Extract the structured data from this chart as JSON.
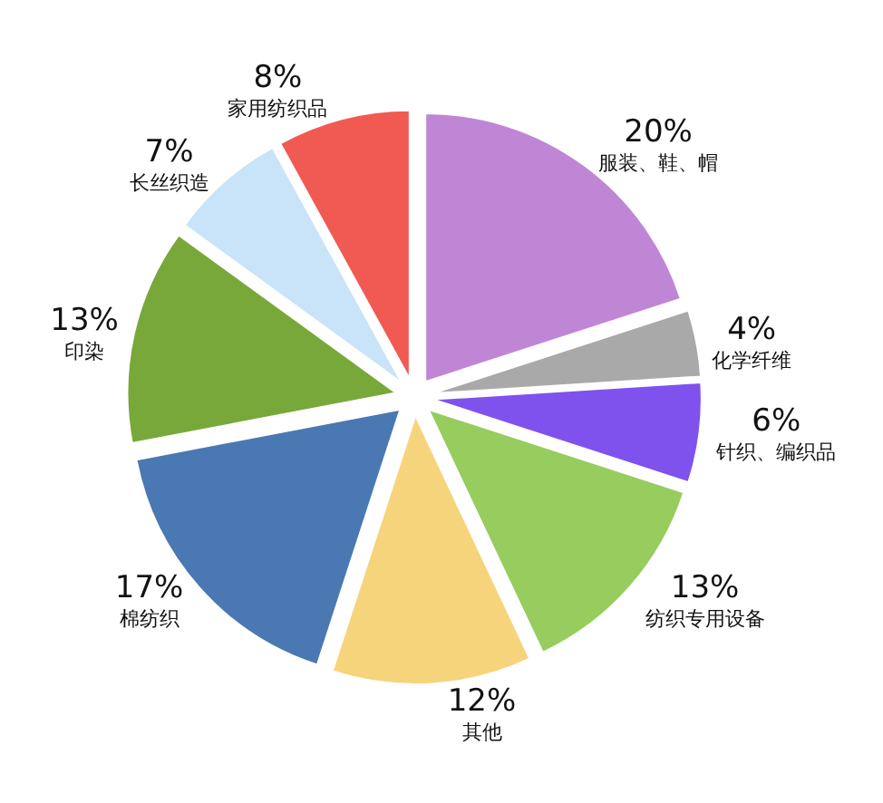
{
  "chart_data": {
    "type": "pie",
    "categories": [
      "服装、鞋、帽",
      "化学纤维",
      "针织、编织品",
      "纺织专用设备",
      "其他",
      "棉纺织",
      "印染",
      "长丝织造",
      "家用纺织品"
    ],
    "values": [
      20,
      4,
      6,
      13,
      12,
      17,
      13,
      7,
      8
    ],
    "value_labels": [
      "20%",
      "4%",
      "6%",
      "13%",
      "12%",
      "17%",
      "13%",
      "7%",
      "8%"
    ],
    "colors": [
      "#bf86d6",
      "#a9a9a9",
      "#7f52ee",
      "#97cc5e",
      "#f6d47c",
      "#4a78b2",
      "#78a83a",
      "#c9e4f8",
      "#f05a52"
    ]
  }
}
